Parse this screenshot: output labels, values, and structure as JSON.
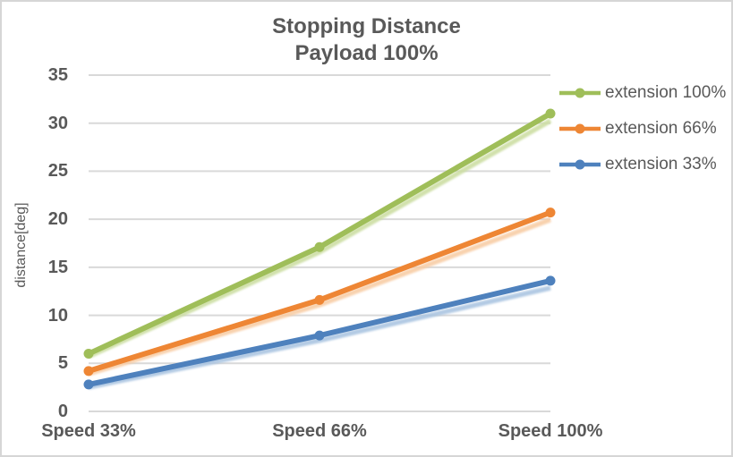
{
  "window": {
    "background_color": "#FFFFFF",
    "border_color": "#D6D6D6"
  },
  "chart_data": {
    "type": "line",
    "title": "Stopping Distance",
    "subtitle": "Payload 100%",
    "xlabel": "",
    "ylabel": "distance[deg]",
    "categories": [
      "Speed 33%",
      "Speed 66%",
      "Speed 100%"
    ],
    "series": [
      {
        "name": "extension 100%",
        "color": "#9FBE59",
        "shadow_color": "#CCDEA3",
        "values": [
          6.0,
          17.1,
          31.0
        ]
      },
      {
        "name": "extension 66%",
        "color": "#EE8634",
        "shadow_color": "#F8CDA6",
        "values": [
          4.2,
          11.6,
          20.7
        ]
      },
      {
        "name": "extension 33%",
        "color": "#4E81BD",
        "shadow_color": "#AAC5E1",
        "values": [
          2.8,
          7.9,
          13.6
        ]
      }
    ],
    "ylim": [
      0,
      35
    ],
    "yticks": [
      0,
      5,
      10,
      15,
      20,
      25,
      30,
      35
    ],
    "grid": true,
    "gridline_color": "#D9D9D9",
    "legend_position": "right",
    "text_color": "#595959",
    "marker": "circle"
  }
}
